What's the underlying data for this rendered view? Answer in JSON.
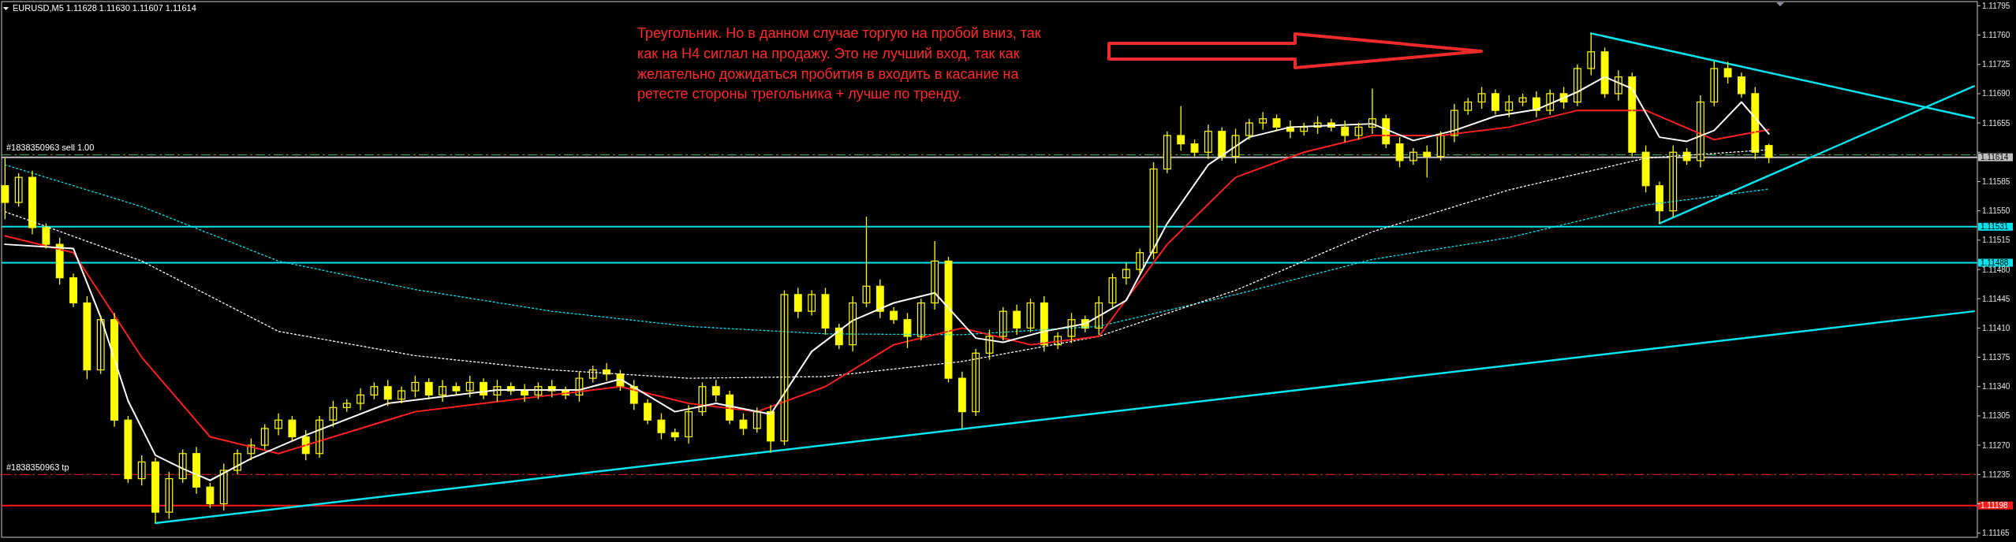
{
  "chart_data": {
    "type": "candlestick",
    "title": "EURUSD,M5  1.11628 1.11630 1.11607 1.11614",
    "annotations": [
      "Треугольник. Но в данном случае торгую на пробой вниз, так как на H4 сиглал на продажу. Это не лучший вход, так как желательно дожидаться пробития в входить в касание на ретесте стороны трегольника + лучше по тренду."
    ],
    "categories": [
      null,
      null,
      null,
      null,
      null,
      null,
      null,
      null,
      null,
      null,
      null,
      null,
      null,
      null,
      null,
      null,
      null,
      null,
      null,
      null,
      null,
      null,
      null,
      null,
      null,
      null,
      null,
      null,
      null,
      null,
      null,
      null,
      null,
      null,
      null,
      null,
      null,
      null,
      null,
      null,
      null,
      null,
      null,
      null,
      null,
      null,
      null,
      null,
      null,
      null,
      null,
      null,
      null,
      null,
      null,
      null,
      null,
      null,
      null,
      null,
      null,
      null,
      null,
      null,
      null,
      null,
      null,
      null,
      null,
      null,
      null,
      null,
      null,
      null,
      null,
      null,
      null,
      null,
      null,
      null,
      null,
      null,
      null,
      null,
      null,
      null,
      null,
      null,
      null,
      null,
      null,
      null,
      null,
      null,
      null,
      null,
      null,
      null,
      null,
      null,
      null,
      null,
      null,
      null,
      null,
      null,
      null,
      null,
      null,
      null,
      null,
      null,
      null,
      null,
      null,
      null,
      null,
      null,
      null,
      null,
      null,
      null,
      null,
      null,
      null,
      null,
      null,
      null,
      null,
      null,
      null,
      null,
      null,
      null,
      null,
      null,
      null,
      null,
      null,
      null,
      null,
      null,
      null,
      null,
      null
    ],
    "color": "#ffff00",
    "ohlc": [
      [
        1.1158,
        1.11613,
        1.1154,
        1.1156
      ],
      [
        1.1156,
        1.11595,
        1.11555,
        1.1159
      ],
      [
        1.1159,
        1.11598,
        1.11522,
        1.1153
      ],
      [
        1.1153,
        1.11535,
        1.11505,
        1.1151
      ],
      [
        1.1151,
        1.11518,
        1.11462,
        1.1147
      ],
      [
        1.1147,
        1.11475,
        1.11435,
        1.1144
      ],
      [
        1.1144,
        1.11448,
        1.11349,
        1.1136
      ],
      [
        1.1136,
        1.11425,
        1.11355,
        1.1142
      ],
      [
        1.1142,
        1.11428,
        1.11292,
        1.113
      ],
      [
        1.113,
        1.11305,
        1.11225,
        1.1123
      ],
      [
        1.1123,
        1.11258,
        1.11222,
        1.1125
      ],
      [
        1.1125,
        1.11255,
        1.11177,
        1.1119
      ],
      [
        1.1119,
        1.11238,
        1.11182,
        1.1123
      ],
      [
        1.1123,
        1.11265,
        1.11225,
        1.1126
      ],
      [
        1.1126,
        1.11268,
        1.11212,
        1.1122
      ],
      [
        1.1122,
        1.11225,
        1.11195,
        1.112
      ],
      [
        1.112,
        1.11248,
        1.11192,
        1.1124
      ],
      [
        1.1124,
        1.11265,
        1.11235,
        1.1126
      ],
      [
        1.1126,
        1.11278,
        1.11252,
        1.1127
      ],
      [
        1.1127,
        1.11295,
        1.11265,
        1.1129
      ],
      [
        1.1129,
        1.11308,
        1.11282,
        1.113
      ],
      [
        1.113,
        1.11305,
        1.11275,
        1.1128
      ],
      [
        1.1128,
        1.11288,
        1.11252,
        1.1126
      ],
      [
        1.1126,
        1.11305,
        1.11255,
        1.113
      ],
      [
        1.113,
        1.11323,
        1.11292,
        1.11315
      ],
      [
        1.11315,
        1.11325,
        1.1131,
        1.1132
      ],
      [
        1.1132,
        1.11338,
        1.11312,
        1.1133
      ],
      [
        1.1133,
        1.11345,
        1.11325,
        1.1134
      ],
      [
        1.1134,
        1.11348,
        1.11317,
        1.11325
      ],
      [
        1.11325,
        1.1134,
        1.1132,
        1.11335
      ],
      [
        1.11335,
        1.11353,
        1.11327,
        1.11345
      ],
      [
        1.11345,
        1.1135,
        1.11325,
        1.1133
      ],
      [
        1.1133,
        1.11348,
        1.11322,
        1.1134
      ],
      [
        1.1134,
        1.11345,
        1.1133,
        1.11335
      ],
      [
        1.11335,
        1.11353,
        1.11327,
        1.11345
      ],
      [
        1.11345,
        1.1135,
        1.11325,
        1.1133
      ],
      [
        1.1133,
        1.11348,
        1.11322,
        1.1134
      ],
      [
        1.1134,
        1.11345,
        1.1133,
        1.11335
      ],
      [
        1.11335,
        1.11343,
        1.11322,
        1.1133
      ],
      [
        1.1133,
        1.11345,
        1.11325,
        1.1134
      ],
      [
        1.1134,
        1.11348,
        1.11327,
        1.11335
      ],
      [
        1.11335,
        1.1134,
        1.11325,
        1.1133
      ],
      [
        1.1133,
        1.11358,
        1.11322,
        1.1135
      ],
      [
        1.1135,
        1.11365,
        1.11345,
        1.1136
      ],
      [
        1.1136,
        1.11368,
        1.11347,
        1.11355
      ],
      [
        1.11355,
        1.1136,
        1.11335,
        1.1134
      ],
      [
        1.1134,
        1.11348,
        1.11312,
        1.1132
      ],
      [
        1.1132,
        1.11325,
        1.11295,
        1.113
      ],
      [
        1.113,
        1.11308,
        1.11277,
        1.11285
      ],
      [
        1.11285,
        1.1129,
        1.11275,
        1.1128
      ],
      [
        1.1128,
        1.11318,
        1.11272,
        1.1131
      ],
      [
        1.1131,
        1.11345,
        1.11305,
        1.1134
      ],
      [
        1.1134,
        1.11348,
        1.11322,
        1.1133
      ],
      [
        1.1133,
        1.11335,
        1.11295,
        1.113
      ],
      [
        1.113,
        1.11308,
        1.11282,
        1.1129
      ],
      [
        1.1129,
        1.11315,
        1.11285,
        1.1131
      ],
      [
        1.1131,
        1.11318,
        1.11261,
        1.11275
      ],
      [
        1.11275,
        1.11455,
        1.1127,
        1.1145
      ],
      [
        1.1145,
        1.11458,
        1.11422,
        1.1143
      ],
      [
        1.1143,
        1.11455,
        1.11425,
        1.1145
      ],
      [
        1.1145,
        1.11458,
        1.11402,
        1.1141
      ],
      [
        1.1141,
        1.11415,
        1.11385,
        1.1139
      ],
      [
        1.1139,
        1.11448,
        1.11382,
        1.1144
      ],
      [
        1.1144,
        1.11543,
        1.11435,
        1.1146
      ],
      [
        1.1146,
        1.11468,
        1.11422,
        1.1143
      ],
      [
        1.1143,
        1.11435,
        1.11415,
        1.1142
      ],
      [
        1.1142,
        1.11428,
        1.11386,
        1.114
      ],
      [
        1.114,
        1.11445,
        1.11395,
        1.1144
      ],
      [
        1.1144,
        1.11514,
        1.11432,
        1.1149
      ],
      [
        1.1149,
        1.11495,
        1.11345,
        1.1135
      ],
      [
        1.1135,
        1.11358,
        1.1129,
        1.1131
      ],
      [
        1.1131,
        1.11385,
        1.11305,
        1.1138
      ],
      [
        1.1138,
        1.11408,
        1.11372,
        1.114
      ],
      [
        1.114,
        1.11435,
        1.11395,
        1.1143
      ],
      [
        1.1143,
        1.11438,
        1.11402,
        1.1141
      ],
      [
        1.1141,
        1.11445,
        1.11405,
        1.1144
      ],
      [
        1.1144,
        1.11448,
        1.11382,
        1.1139
      ],
      [
        1.1139,
        1.11405,
        1.11385,
        1.114
      ],
      [
        1.114,
        1.11428,
        1.11392,
        1.1142
      ],
      [
        1.1142,
        1.11425,
        1.11405,
        1.1141
      ],
      [
        1.1141,
        1.11448,
        1.11402,
        1.1144
      ],
      [
        1.1144,
        1.11475,
        1.11435,
        1.1147
      ],
      [
        1.1147,
        1.11488,
        1.11462,
        1.1148
      ],
      [
        1.1148,
        1.11505,
        1.11475,
        1.115
      ],
      [
        1.115,
        1.11608,
        1.11492,
        1.116
      ],
      [
        1.116,
        1.11645,
        1.11595,
        1.1164
      ],
      [
        1.1164,
        1.11675,
        1.11622,
        1.1163
      ],
      [
        1.1163,
        1.11635,
        1.11615,
        1.1162
      ],
      [
        1.1162,
        1.11653,
        1.11612,
        1.11645
      ],
      [
        1.11645,
        1.1165,
        1.1161,
        1.11615
      ],
      [
        1.11615,
        1.11648,
        1.11607,
        1.1164
      ],
      [
        1.1164,
        1.1166,
        1.11635,
        1.11655
      ],
      [
        1.11655,
        1.11668,
        1.11647,
        1.1166
      ],
      [
        1.1166,
        1.11665,
        1.11645,
        1.1165
      ],
      [
        1.1165,
        1.11658,
        1.11637,
        1.11645
      ],
      [
        1.11645,
        1.11655,
        1.1164,
        1.1165
      ],
      [
        1.1165,
        1.11663,
        1.11642,
        1.11655
      ],
      [
        1.11655,
        1.1166,
        1.11645,
        1.1165
      ],
      [
        1.1165,
        1.11658,
        1.11632,
        1.1164
      ],
      [
        1.1164,
        1.11655,
        1.11635,
        1.1165
      ],
      [
        1.1165,
        1.11696,
        1.11642,
        1.1166
      ],
      [
        1.1166,
        1.11665,
        1.11625,
        1.1163
      ],
      [
        1.1163,
        1.11638,
        1.11602,
        1.1161
      ],
      [
        1.1161,
        1.11625,
        1.11605,
        1.1162
      ],
      [
        1.1162,
        1.11628,
        1.1159,
        1.11615
      ],
      [
        1.11615,
        1.11645,
        1.1161,
        1.1164
      ],
      [
        1.1164,
        1.11678,
        1.11632,
        1.1167
      ],
      [
        1.1167,
        1.11685,
        1.11665,
        1.1168
      ],
      [
        1.1168,
        1.11698,
        1.11672,
        1.1169
      ],
      [
        1.1169,
        1.11695,
        1.11665,
        1.1167
      ],
      [
        1.1167,
        1.11688,
        1.11662,
        1.1168
      ],
      [
        1.1168,
        1.1169,
        1.11675,
        1.11685
      ],
      [
        1.11685,
        1.11693,
        1.11662,
        1.1167
      ],
      [
        1.1167,
        1.11695,
        1.11665,
        1.1169
      ],
      [
        1.1169,
        1.11698,
        1.11672,
        1.1168
      ],
      [
        1.1168,
        1.11725,
        1.11675,
        1.1172
      ],
      [
        1.1172,
        1.11762,
        1.11712,
        1.1174
      ],
      [
        1.1174,
        1.11745,
        1.11685,
        1.1169
      ],
      [
        1.1169,
        1.11718,
        1.11682,
        1.1171
      ],
      [
        1.1171,
        1.11715,
        1.11615,
        1.1162
      ],
      [
        1.1162,
        1.11628,
        1.11572,
        1.1158
      ],
      [
        1.1158,
        1.11585,
        1.11535,
        1.1155
      ],
      [
        1.1155,
        1.11628,
        1.11542,
        1.1162
      ],
      [
        1.1162,
        1.11625,
        1.11605,
        1.1161
      ],
      [
        1.1161,
        1.11688,
        1.11602,
        1.1168
      ],
      [
        1.1168,
        1.11729,
        1.11675,
        1.1172
      ],
      [
        1.1172,
        1.11728,
        1.11702,
        1.1171
      ],
      [
        1.1171,
        1.11715,
        1.11685,
        1.1169
      ],
      [
        1.1169,
        1.11698,
        1.11612,
        1.1162
      ],
      [
        1.11628,
        1.1163,
        1.11607,
        1.11614
      ],
      null,
      null,
      null,
      null,
      null,
      null,
      null,
      null,
      null,
      null,
      null,
      null,
      null,
      null,
      null
    ],
    "series": [
      {
        "type": "line",
        "color": "#00e5ee",
        "line_style": "dotted",
        "values": [
          1.11605,
          null,
          null,
          null,
          null,
          null,
          null,
          null,
          null,
          null,
          1.11555,
          null,
          null,
          null,
          null,
          null,
          null,
          null,
          null,
          null,
          1.1149,
          null,
          null,
          null,
          null,
          null,
          null,
          null,
          null,
          null,
          1.11456,
          null,
          null,
          null,
          null,
          null,
          null,
          null,
          null,
          null,
          1.1143,
          null,
          null,
          null,
          null,
          null,
          null,
          null,
          null,
          null,
          1.11412,
          null,
          null,
          null,
          null,
          null,
          null,
          null,
          null,
          null,
          1.11403,
          null,
          null,
          null,
          null,
          null,
          null,
          null,
          null,
          null,
          1.11402,
          null,
          null,
          null,
          null,
          null,
          null,
          null,
          null,
          null,
          1.11412,
          null,
          null,
          null,
          null,
          null,
          null,
          null,
          null,
          null,
          1.1145,
          null,
          null,
          null,
          null,
          null,
          null,
          null,
          null,
          null,
          1.11492,
          null,
          null,
          null,
          null,
          null,
          null,
          null,
          null,
          null,
          1.11518,
          null,
          null,
          null,
          null,
          null,
          null,
          null,
          null,
          null,
          1.11557,
          null,
          null,
          null,
          null,
          null,
          null,
          null,
          null,
          1.11576,
          null,
          null,
          null,
          null,
          null,
          null,
          null,
          null,
          null,
          null,
          null,
          null,
          null,
          null,
          null
        ]
      },
      {
        "type": "line",
        "color": "#ffffff",
        "line_style": "dotted",
        "values": [
          1.11549,
          null,
          null,
          null,
          null,
          null,
          null,
          null,
          null,
          null,
          1.1149,
          null,
          null,
          null,
          null,
          null,
          null,
          null,
          null,
          null,
          1.11406,
          null,
          null,
          null,
          null,
          null,
          null,
          null,
          null,
          null,
          1.11377,
          null,
          null,
          null,
          null,
          null,
          null,
          null,
          null,
          null,
          1.1136,
          null,
          null,
          null,
          null,
          null,
          null,
          null,
          null,
          null,
          1.1135,
          null,
          null,
          null,
          null,
          null,
          null,
          null,
          null,
          null,
          1.11352,
          null,
          null,
          null,
          null,
          null,
          null,
          null,
          null,
          null,
          1.1137,
          null,
          null,
          null,
          null,
          null,
          null,
          null,
          null,
          null,
          1.114,
          null,
          null,
          null,
          null,
          null,
          null,
          null,
          null,
          null,
          1.11455,
          null,
          null,
          null,
          null,
          null,
          null,
          null,
          null,
          null,
          1.11525,
          null,
          null,
          null,
          null,
          null,
          null,
          null,
          null,
          null,
          1.11575,
          null,
          null,
          null,
          null,
          null,
          null,
          null,
          null,
          null,
          1.11613,
          null,
          null,
          null,
          null,
          null,
          null,
          null,
          null,
          1.11623,
          null,
          null,
          null,
          null,
          null,
          null,
          null,
          null,
          null,
          null,
          null,
          null,
          null,
          null,
          null
        ]
      },
      {
        "type": "line",
        "color": "#ff2020",
        "line_style": "solid",
        "values": [
          1.1152,
          null,
          null,
          null,
          null,
          1.115,
          null,
          null,
          null,
          null,
          1.11375,
          null,
          null,
          null,
          null,
          1.1128,
          null,
          null,
          null,
          null,
          1.1126,
          null,
          null,
          null,
          null,
          1.11285,
          null,
          null,
          null,
          null,
          1.1131,
          null,
          null,
          null,
          null,
          1.1132,
          null,
          null,
          null,
          null,
          1.1133,
          null,
          null,
          null,
          null,
          1.1134,
          null,
          null,
          null,
          null,
          1.1132,
          null,
          null,
          null,
          null,
          1.1131,
          null,
          null,
          null,
          null,
          1.1134,
          null,
          null,
          null,
          null,
          1.1139,
          null,
          null,
          null,
          null,
          1.1141,
          null,
          null,
          null,
          null,
          1.1139,
          null,
          null,
          null,
          null,
          1.114,
          null,
          null,
          null,
          null,
          1.1151,
          null,
          null,
          null,
          null,
          1.1159,
          null,
          null,
          null,
          null,
          1.1162,
          null,
          null,
          null,
          null,
          1.1164,
          null,
          null,
          null,
          null,
          1.1164,
          null,
          null,
          null,
          null,
          1.1165,
          null,
          null,
          null,
          null,
          1.1167,
          null,
          null,
          null,
          null,
          1.1167,
          null,
          null,
          null,
          null,
          1.11635,
          null,
          null,
          null,
          1.11647,
          null,
          null,
          null,
          null,
          null,
          null,
          null,
          null,
          null,
          null,
          null,
          null,
          null,
          null,
          null
        ]
      },
      {
        "type": "line",
        "color": "#ffffff",
        "line_style": "solid",
        "values": [
          1.1151,
          null,
          null,
          null,
          null,
          1.11505,
          null,
          1.11423,
          null,
          1.11323,
          null,
          1.11258,
          null,
          1.11242,
          null,
          1.11228,
          null,
          null,
          1.11254,
          null,
          null,
          null,
          1.11282,
          null,
          null,
          null,
          null,
          null,
          1.1132,
          null,
          null,
          null,
          null,
          null,
          null,
          null,
          1.11336,
          null,
          null,
          null,
          null,
          null,
          1.11336,
          null,
          null,
          1.11349,
          null,
          null,
          null,
          1.1131,
          null,
          null,
          1.1132,
          null,
          null,
          null,
          1.11307,
          null,
          null,
          1.11382,
          null,
          null,
          1.11419,
          null,
          null,
          1.1144,
          null,
          null,
          1.11452,
          null,
          null,
          1.11398,
          null,
          1.11393,
          null,
          null,
          1.11406,
          null,
          null,
          1.11415,
          null,
          null,
          1.11443,
          null,
          null,
          1.11535,
          null,
          null,
          1.11605,
          null,
          null,
          1.11638,
          null,
          null,
          1.1165,
          null,
          null,
          1.11652,
          null,
          null,
          1.11654,
          null,
          null,
          1.11634,
          null,
          null,
          1.11646,
          null,
          null,
          1.11663,
          null,
          null,
          1.11671,
          null,
          null,
          1.11692,
          null,
          1.1171,
          null,
          1.11696,
          null,
          1.11638,
          null,
          1.11633,
          null,
          1.11646,
          null,
          1.1168,
          null,
          1.11642,
          null,
          null,
          null,
          null,
          null,
          null,
          null,
          null,
          null,
          null,
          null,
          null,
          null,
          null,
          null
        ]
      },
      {
        "type": "line",
        "color": "#00e5ee",
        "line_style": "solid",
        "values": [
          null,
          null,
          null,
          null,
          null,
          null,
          null,
          null,
          null,
          null,
          null,
          1.11177,
          null,
          null,
          null,
          null,
          null,
          null,
          null,
          null,
          null,
          null,
          null,
          null,
          null,
          null,
          null,
          null,
          null,
          null,
          null,
          null,
          null,
          null,
          null,
          null,
          null,
          null,
          null,
          null,
          null,
          null,
          null,
          null,
          null,
          null,
          null,
          null,
          null,
          null,
          null,
          null,
          null,
          null,
          null,
          null,
          null,
          null,
          null,
          null,
          null,
          null,
          null,
          null,
          null,
          null,
          null,
          null,
          null,
          null,
          null,
          null,
          null,
          null,
          null,
          null,
          null,
          null,
          null,
          null,
          null,
          null,
          null,
          null,
          null,
          null,
          null,
          null,
          null,
          null,
          null,
          null,
          null,
          null,
          null,
          null,
          null,
          null,
          null,
          null,
          null,
          null,
          null,
          null,
          null,
          null,
          null,
          null,
          null,
          null,
          null,
          null,
          null,
          null,
          null,
          null,
          null,
          null,
          null,
          null,
          null,
          null,
          null,
          null,
          null,
          null,
          null,
          null,
          null,
          null,
          null,
          null,
          null,
          null,
          null,
          null,
          null,
          null,
          null,
          null,
          null,
          null,
          null,
          null,
          1.1143
        ]
      },
      {
        "type": "line",
        "color": "#00e5ee",
        "line_style": "solid",
        "values": [
          null,
          null,
          null,
          null,
          null,
          null,
          null,
          null,
          null,
          null,
          null,
          null,
          null,
          null,
          null,
          null,
          null,
          null,
          null,
          null,
          null,
          null,
          null,
          null,
          null,
          null,
          null,
          null,
          null,
          null,
          null,
          null,
          null,
          null,
          null,
          null,
          null,
          null,
          null,
          null,
          null,
          null,
          null,
          null,
          null,
          null,
          null,
          null,
          null,
          null,
          null,
          null,
          null,
          null,
          null,
          null,
          null,
          null,
          null,
          null,
          null,
          null,
          null,
          null,
          null,
          null,
          null,
          null,
          null,
          null,
          null,
          null,
          null,
          null,
          null,
          null,
          null,
          null,
          null,
          null,
          null,
          null,
          null,
          null,
          null,
          null,
          null,
          null,
          null,
          null,
          null,
          null,
          null,
          null,
          null,
          null,
          null,
          null,
          null,
          null,
          null,
          null,
          null,
          null,
          null,
          null,
          null,
          null,
          null,
          null,
          null,
          null,
          null,
          null,
          null,
          null,
          1.11762,
          null,
          null,
          null,
          null,
          null,
          null,
          null,
          null,
          null,
          null,
          null,
          null,
          null,
          null,
          null,
          null,
          null,
          null,
          null,
          null,
          null,
          null,
          null,
          null,
          null,
          null,
          null,
          1.11661
        ]
      },
      {
        "type": "line",
        "color": "#00e5ee",
        "line_style": "solid",
        "values": [
          null,
          null,
          null,
          null,
          null,
          null,
          null,
          null,
          null,
          null,
          null,
          null,
          null,
          null,
          null,
          null,
          null,
          null,
          null,
          null,
          null,
          null,
          null,
          null,
          null,
          null,
          null,
          null,
          null,
          null,
          null,
          null,
          null,
          null,
          null,
          null,
          null,
          null,
          null,
          null,
          null,
          null,
          null,
          null,
          null,
          null,
          null,
          null,
          null,
          null,
          null,
          null,
          null,
          null,
          null,
          null,
          null,
          null,
          null,
          null,
          null,
          null,
          null,
          null,
          null,
          null,
          null,
          null,
          null,
          null,
          null,
          null,
          null,
          null,
          null,
          null,
          null,
          null,
          null,
          null,
          null,
          null,
          null,
          null,
          null,
          null,
          null,
          null,
          null,
          null,
          null,
          null,
          null,
          null,
          null,
          null,
          null,
          null,
          null,
          null,
          null,
          null,
          null,
          null,
          null,
          null,
          null,
          null,
          null,
          null,
          null,
          null,
          null,
          null,
          null,
          null,
          null,
          null,
          null,
          null,
          null,
          1.11535,
          null,
          null,
          null,
          null,
          null,
          null,
          null,
          null,
          null,
          null,
          null,
          null,
          null,
          null,
          null,
          null,
          null,
          null,
          null,
          null,
          null,
          null,
          1.11699
        ]
      }
    ],
    "ylim": [
      1.1116,
      1.118
    ],
    "yticks": [
      {
        "value": 1.11165,
        "label": "1.11165"
      },
      {
        "value": 1.112,
        "label": null
      },
      {
        "value": 1.11235,
        "label": "1.11235"
      },
      {
        "value": 1.1127,
        "label": "1.11270"
      },
      {
        "value": 1.11305,
        "label": "1.11305"
      },
      {
        "value": 1.1134,
        "label": "1.11340"
      },
      {
        "value": 1.11375,
        "label": "1.11375"
      },
      {
        "value": 1.1141,
        "label": "1.11410"
      },
      {
        "value": 1.11445,
        "label": "1.11445"
      },
      {
        "value": 1.1148,
        "label": "1.11480"
      },
      {
        "value": 1.11515,
        "label": "1.11515"
      },
      {
        "value": 1.1155,
        "label": "1.11550"
      },
      {
        "value": 1.11585,
        "label": "1.11585"
      },
      {
        "value": 1.1162,
        "label": null
      },
      {
        "value": 1.11655,
        "label": "1.11655"
      },
      {
        "value": 1.1169,
        "label": "1.11690"
      },
      {
        "value": 1.11725,
        "label": "1.11725"
      },
      {
        "value": 1.1176,
        "label": "1.11760"
      },
      {
        "value": 1.11795,
        "label": "1.11795"
      }
    ],
    "tick_labels": "y",
    "ref_lines": [
      {
        "axis": "y",
        "value": 1.11617,
        "label": "#1838350963 sell 1.00",
        "color": "#3cb043",
        "line_style": "dashed"
      },
      {
        "axis": "y",
        "value": 1.11614,
        "label": "1.11614",
        "color": "#c0c0c0",
        "line_style": "solid"
      },
      {
        "axis": "y",
        "value": 1.11531,
        "label": "1.11531",
        "color": "#00e5ee",
        "line_style": "solid"
      },
      {
        "axis": "y",
        "value": 1.11488,
        "label": "1.11488",
        "color": "#00e5ee",
        "line_style": "solid"
      },
      {
        "axis": "y",
        "value": 1.11235,
        "label": "#1838350963 tp",
        "color": "#ff1a1a",
        "line_style": "dashed"
      },
      {
        "axis": "y",
        "value": 1.11198,
        "label": "1.11198",
        "color": "#ff1a1a",
        "line_style": "solid"
      }
    ]
  }
}
